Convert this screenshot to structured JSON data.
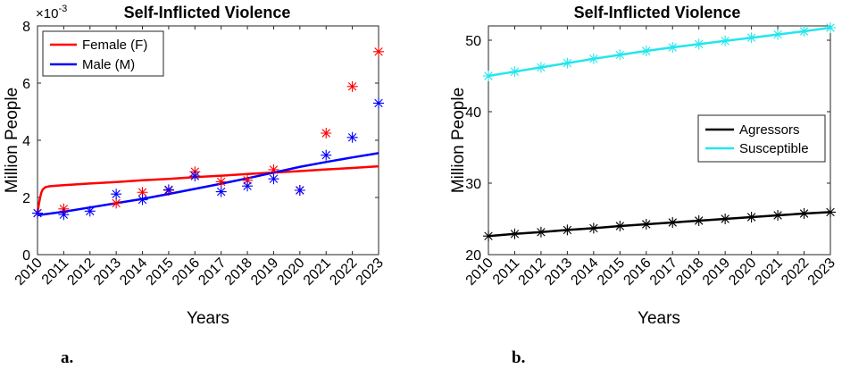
{
  "chart_data": [
    {
      "type": "line",
      "title": "Self-Inflicted Violence",
      "xlabel": "Years",
      "ylabel": "Million People",
      "y_multiplier_label": "×10",
      "y_multiplier_exponent": "-3",
      "categories": [
        "2010",
        "2011",
        "2012",
        "2013",
        "2014",
        "2015",
        "2016",
        "2017",
        "2018",
        "2019",
        "2020",
        "2021",
        "2022",
        "2023"
      ],
      "xlim": [
        2010,
        2023
      ],
      "ylim": [
        0,
        8
      ],
      "yticks": [
        0,
        2,
        4,
        6,
        8
      ],
      "ytick_labels": [
        "0",
        "2",
        "4",
        "6",
        "8"
      ],
      "legend_position": "top-left",
      "series": [
        {
          "name": "Female (F)",
          "color": "#ff0000",
          "fit_x": [
            2010,
            2010.05,
            2010.1,
            2010.15,
            2010.2,
            2010.3,
            2010.45,
            2010.7,
            2011,
            2012,
            2013,
            2014,
            2015,
            2016,
            2017,
            2018,
            2019,
            2020,
            2021,
            2022,
            2023
          ],
          "fit_y": [
            1.45,
            1.75,
            2.0,
            2.18,
            2.28,
            2.36,
            2.39,
            2.41,
            2.43,
            2.49,
            2.54,
            2.6,
            2.65,
            2.71,
            2.76,
            2.82,
            2.87,
            2.92,
            2.98,
            3.03,
            3.09
          ],
          "obs_x": [
            2010,
            2011,
            2013,
            2014,
            2015,
            2016,
            2017,
            2018,
            2019,
            2020,
            2021,
            2022,
            2023
          ],
          "obs_y": [
            1.45,
            1.6,
            1.8,
            2.18,
            2.25,
            2.9,
            2.55,
            2.6,
            2.97,
            2.25,
            4.25,
            5.88,
            7.1
          ]
        },
        {
          "name": "Male (M)",
          "color": "#0000ff",
          "fit_x": [
            2010,
            2011,
            2012,
            2013,
            2014,
            2015,
            2016,
            2017,
            2018,
            2019,
            2020,
            2021,
            2022,
            2023
          ],
          "fit_y": [
            1.38,
            1.5,
            1.65,
            1.8,
            1.95,
            2.12,
            2.3,
            2.48,
            2.67,
            2.87,
            3.07,
            3.24,
            3.4,
            3.55
          ],
          "obs_x": [
            2010,
            2011,
            2012,
            2013,
            2014,
            2015,
            2016,
            2017,
            2018,
            2019,
            2020,
            2021,
            2022,
            2023
          ],
          "obs_y": [
            1.45,
            1.4,
            1.52,
            2.12,
            1.92,
            2.27,
            2.75,
            2.2,
            2.4,
            2.65,
            2.25,
            3.48,
            4.1,
            5.3
          ]
        }
      ]
    },
    {
      "type": "line",
      "title": "Self-Inflicted Violence",
      "xlabel": "Years",
      "ylabel": "Million People",
      "categories": [
        "2010",
        "2011",
        "2012",
        "2013",
        "2014",
        "2015",
        "2016",
        "2017",
        "2018",
        "2019",
        "2020",
        "2021",
        "2022",
        "2023"
      ],
      "xlim": [
        2010,
        2023
      ],
      "ylim": [
        20,
        52
      ],
      "yticks": [
        20,
        30,
        40,
        50
      ],
      "ytick_labels": [
        "20",
        "30",
        "40",
        "50"
      ],
      "legend_position": "center-right",
      "series": [
        {
          "name": "Agressors",
          "color": "#000000",
          "fit_x": [
            2010,
            2011,
            2012,
            2013,
            2014,
            2015,
            2016,
            2017,
            2018,
            2019,
            2020,
            2021,
            2022,
            2023
          ],
          "fit_y": [
            22.6,
            22.9,
            23.15,
            23.45,
            23.7,
            24.0,
            24.25,
            24.5,
            24.75,
            25.0,
            25.25,
            25.5,
            25.75,
            25.95
          ],
          "obs_x": [
            2010,
            2011,
            2012,
            2013,
            2014,
            2015,
            2016,
            2017,
            2018,
            2019,
            2020,
            2021,
            2022,
            2023
          ],
          "obs_y": [
            22.6,
            22.9,
            23.15,
            23.45,
            23.7,
            24.0,
            24.25,
            24.5,
            24.75,
            25.0,
            25.25,
            25.5,
            25.75,
            25.95
          ]
        },
        {
          "name": "Susceptible",
          "color": "#22e6ee",
          "fit_x": [
            2010,
            2011,
            2012,
            2013,
            2014,
            2015,
            2016,
            2017,
            2018,
            2019,
            2020,
            2021,
            2022,
            2023
          ],
          "fit_y": [
            45.0,
            45.6,
            46.2,
            46.8,
            47.4,
            47.95,
            48.5,
            49.0,
            49.45,
            49.9,
            50.35,
            50.8,
            51.25,
            51.75
          ],
          "obs_x": [
            2010,
            2011,
            2012,
            2013,
            2014,
            2015,
            2016,
            2017,
            2018,
            2019,
            2020,
            2021,
            2022,
            2023
          ],
          "obs_y": [
            45.0,
            45.6,
            46.2,
            46.8,
            47.4,
            47.95,
            48.5,
            49.0,
            49.45,
            49.9,
            50.35,
            50.8,
            51.25,
            51.75
          ]
        }
      ]
    }
  ],
  "panel_labels": [
    "a.",
    "b."
  ]
}
